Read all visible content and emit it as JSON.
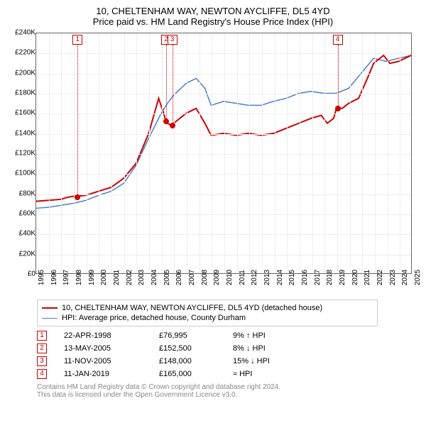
{
  "title": "10, CHELTENHAM WAY, NEWTON AYCLIFFE, DL5 4YD",
  "subtitle": "Price paid vs. HM Land Registry's House Price Index (HPI)",
  "chart": {
    "type": "line",
    "background_color": "#ffffff",
    "grid_color": "#eeeeee",
    "border_color": "#666666",
    "title_fontsize": 13,
    "label_fontsize": 10,
    "x": {
      "min": 1995,
      "max": 2025,
      "step": 1,
      "rotated": true
    },
    "y": {
      "min": 0,
      "max": 240000,
      "step": 20000,
      "prefix": "£",
      "suffix": "K",
      "divisor": 1000
    },
    "series": [
      {
        "label": "10, CHELTENHAM WAY, NEWTON AYCLIFFE, DL5 4YD (detached house)",
        "color": "#cc0000",
        "line_width": 2,
        "points": [
          [
            1995,
            72000
          ],
          [
            1996,
            73000
          ],
          [
            1997,
            74000
          ],
          [
            1997.5,
            76000
          ],
          [
            1998,
            76995
          ],
          [
            1998.3,
            76995
          ],
          [
            1999,
            78000
          ],
          [
            2000,
            82000
          ],
          [
            2001,
            86000
          ],
          [
            2002,
            95000
          ],
          [
            2003,
            110000
          ],
          [
            2004,
            140000
          ],
          [
            2004.8,
            175000
          ],
          [
            2005.2,
            160000
          ],
          [
            2005.37,
            152500
          ],
          [
            2005.5,
            150000
          ],
          [
            2005.85,
            148000
          ],
          [
            2006,
            150000
          ],
          [
            2007,
            160000
          ],
          [
            2007.8,
            165000
          ],
          [
            2008.5,
            150000
          ],
          [
            2009,
            138000
          ],
          [
            2010,
            140000
          ],
          [
            2011,
            138000
          ],
          [
            2012,
            140000
          ],
          [
            2013,
            138000
          ],
          [
            2014,
            140000
          ],
          [
            2015,
            145000
          ],
          [
            2016,
            150000
          ],
          [
            2017,
            155000
          ],
          [
            2017.8,
            158000
          ],
          [
            2018.3,
            150000
          ],
          [
            2018.8,
            155000
          ],
          [
            2019.03,
            165000
          ],
          [
            2019.5,
            165000
          ],
          [
            2020,
            170000
          ],
          [
            2020.8,
            175000
          ],
          [
            2021.5,
            195000
          ],
          [
            2022,
            210000
          ],
          [
            2022.8,
            218000
          ],
          [
            2023.3,
            210000
          ],
          [
            2024,
            212000
          ],
          [
            2024.5,
            215000
          ],
          [
            2025,
            218000
          ]
        ]
      },
      {
        "label": "HPI: Average price, detached house, County Durham",
        "color": "#4a7ec8",
        "line_width": 1.5,
        "points": [
          [
            1995,
            65000
          ],
          [
            1996,
            66000
          ],
          [
            1997,
            68000
          ],
          [
            1998,
            70000
          ],
          [
            1999,
            73000
          ],
          [
            2000,
            78000
          ],
          [
            2001,
            82000
          ],
          [
            2002,
            90000
          ],
          [
            2003,
            108000
          ],
          [
            2004,
            135000
          ],
          [
            2005,
            160000
          ],
          [
            2005.5,
            170000
          ],
          [
            2006,
            178000
          ],
          [
            2007,
            190000
          ],
          [
            2007.8,
            195000
          ],
          [
            2008.5,
            185000
          ],
          [
            2009,
            168000
          ],
          [
            2010,
            172000
          ],
          [
            2011,
            170000
          ],
          [
            2012,
            168000
          ],
          [
            2013,
            168000
          ],
          [
            2014,
            172000
          ],
          [
            2015,
            175000
          ],
          [
            2016,
            180000
          ],
          [
            2017,
            182000
          ],
          [
            2018,
            180000
          ],
          [
            2019,
            180000
          ],
          [
            2020,
            185000
          ],
          [
            2021,
            200000
          ],
          [
            2022,
            215000
          ],
          [
            2023,
            212000
          ],
          [
            2024,
            215000
          ],
          [
            2025,
            218000
          ]
        ]
      }
    ],
    "markers": [
      {
        "n": "1",
        "x": 1998.3,
        "y": 76995
      },
      {
        "n": "2",
        "x": 2005.37,
        "y": 152500
      },
      {
        "n": "3",
        "x": 2005.85,
        "y": 148000
      },
      {
        "n": "4",
        "x": 2019.03,
        "y": 165000
      }
    ]
  },
  "transactions": [
    {
      "n": "1",
      "date": "22-APR-1998",
      "price": "£76,995",
      "diff": "9% ↑ HPI"
    },
    {
      "n": "2",
      "date": "13-MAY-2005",
      "price": "£152,500",
      "diff": "8% ↓ HPI"
    },
    {
      "n": "3",
      "date": "11-NOV-2005",
      "price": "£148,000",
      "diff": "15% ↓ HPI"
    },
    {
      "n": "4",
      "date": "11-JAN-2019",
      "price": "£165,000",
      "diff": "≈ HPI"
    }
  ],
  "footer": {
    "line1": "Contains HM Land Registry data © Crown copyright and database right 2024.",
    "line2": "This data is licensed under the Open Government Licence v3.0."
  }
}
